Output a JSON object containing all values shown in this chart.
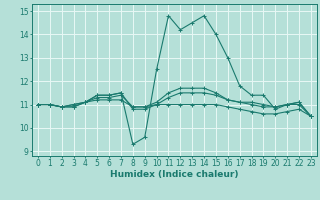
{
  "title": "",
  "xlabel": "Humidex (Indice chaleur)",
  "ylabel": "",
  "xlim": [
    -0.5,
    23.5
  ],
  "ylim": [
    8.8,
    15.3
  ],
  "yticks": [
    9,
    10,
    11,
    12,
    13,
    14,
    15
  ],
  "xticks": [
    0,
    1,
    2,
    3,
    4,
    5,
    6,
    7,
    8,
    9,
    10,
    11,
    12,
    13,
    14,
    15,
    16,
    17,
    18,
    19,
    20,
    21,
    22,
    23
  ],
  "bg_color": "#b5e0d8",
  "grid_color": "#e8f8f5",
  "line_color": "#1a7a6e",
  "lines": [
    [
      11.0,
      11.0,
      10.9,
      10.9,
      11.1,
      11.4,
      11.4,
      11.5,
      9.3,
      9.6,
      12.5,
      14.8,
      14.2,
      14.5,
      14.8,
      14.0,
      13.0,
      11.8,
      11.4,
      11.4,
      10.8,
      11.0,
      11.1,
      10.5
    ],
    [
      11.0,
      11.0,
      10.9,
      10.9,
      11.1,
      11.4,
      11.4,
      11.5,
      10.8,
      10.8,
      11.0,
      11.0,
      11.0,
      11.0,
      11.0,
      11.0,
      10.9,
      10.8,
      10.7,
      10.6,
      10.6,
      10.7,
      10.8,
      10.5
    ],
    [
      11.0,
      11.0,
      10.9,
      11.0,
      11.1,
      11.2,
      11.2,
      11.2,
      10.9,
      10.9,
      11.0,
      11.3,
      11.5,
      11.5,
      11.5,
      11.4,
      11.2,
      11.1,
      11.0,
      10.9,
      10.9,
      11.0,
      11.0,
      10.5
    ],
    [
      11.0,
      11.0,
      10.9,
      11.0,
      11.1,
      11.3,
      11.3,
      11.4,
      10.9,
      10.9,
      11.1,
      11.5,
      11.7,
      11.7,
      11.7,
      11.5,
      11.2,
      11.1,
      11.1,
      11.0,
      10.9,
      11.0,
      11.1,
      10.5
    ]
  ]
}
